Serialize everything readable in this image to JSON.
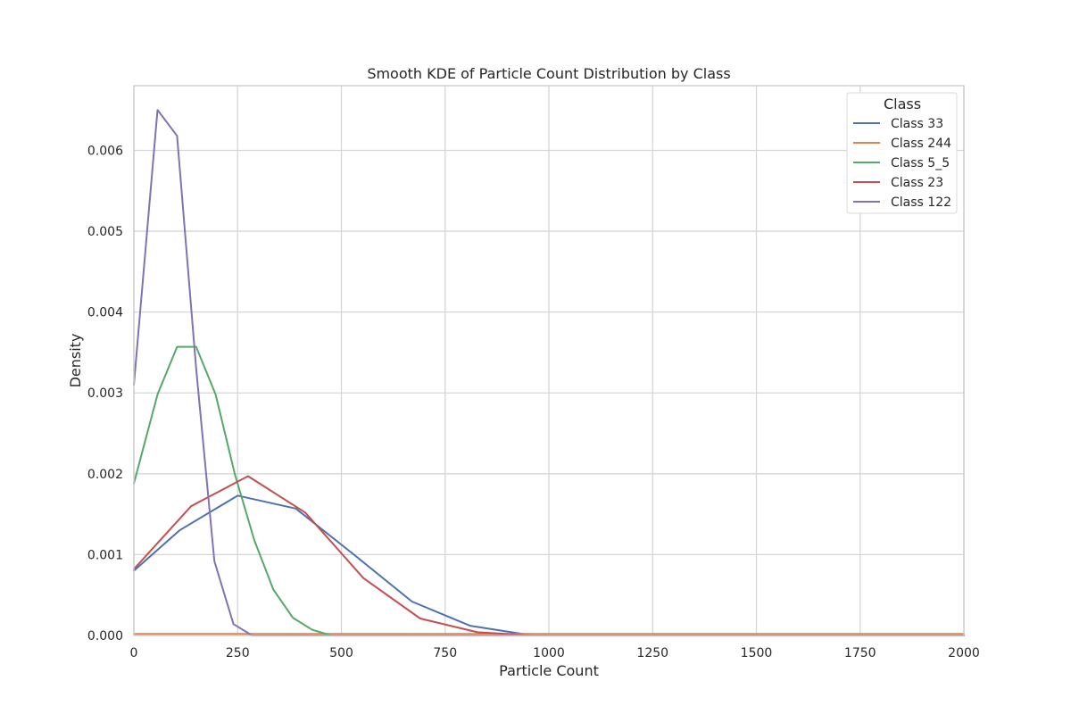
{
  "chart_data": {
    "type": "line",
    "title": "Smooth KDE of Particle Count Distribution by Class",
    "xlabel": "Particle Count",
    "ylabel": "Density",
    "xlim": [
      0,
      2000
    ],
    "ylim": [
      0,
      0.0068
    ],
    "x_ticks": [
      "0",
      "250",
      "500",
      "750",
      "1000",
      "1250",
      "1500",
      "1750",
      "2000"
    ],
    "y_ticks": [
      "0.000",
      "0.001",
      "0.002",
      "0.003",
      "0.004",
      "0.005",
      "0.006"
    ],
    "grid": true,
    "legend": {
      "title": "Class",
      "position": "top-right"
    },
    "series": [
      {
        "name": "Class 33",
        "color": "#4c72b0",
        "x": [
          0,
          110,
          250,
          390,
          530,
          670,
          810,
          960,
          2000
        ],
        "y": [
          0.0008,
          0.0013,
          0.00173,
          0.00157,
          0.001,
          0.00042,
          0.00012,
          0.0,
          0.0
        ]
      },
      {
        "name": "Class 244",
        "color": "#dd8452",
        "x": [
          0,
          2000
        ],
        "y": [
          2e-05,
          2e-05
        ]
      },
      {
        "name": "Class 5_5",
        "color": "#55a868",
        "x": [
          0,
          57,
          104,
          150,
          197,
          243,
          290,
          336,
          383,
          430,
          476,
          2000
        ],
        "y": [
          0.00188,
          0.00298,
          0.00357,
          0.00357,
          0.00298,
          0.002,
          0.00118,
          0.00057,
          0.00022,
          7e-05,
          0.0,
          0.0
        ]
      },
      {
        "name": "Class 23",
        "color": "#c44e52",
        "x": [
          0,
          138,
          275,
          413,
          553,
          690,
          828,
          960,
          2000
        ],
        "y": [
          0.00082,
          0.0016,
          0.00197,
          0.00152,
          0.00071,
          0.00021,
          4e-05,
          0.0,
          0.0
        ]
      },
      {
        "name": "Class 122",
        "color": "#8172b3",
        "x": [
          0,
          57,
          104,
          150,
          194,
          240,
          285,
          2000
        ],
        "y": [
          0.0031,
          0.0065,
          0.00618,
          0.0033,
          0.00092,
          0.00014,
          0.0,
          0.0
        ]
      }
    ]
  }
}
